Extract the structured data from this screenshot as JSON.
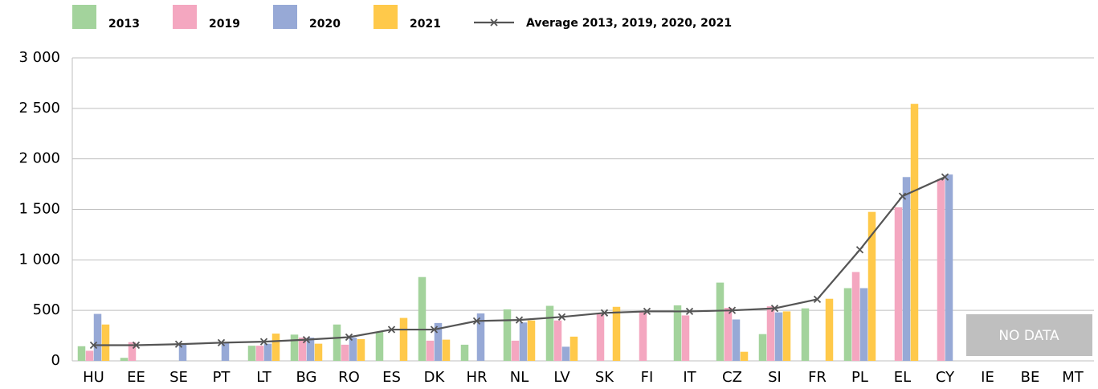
{
  "chart_data": {
    "type": "bar",
    "categories": [
      "HU",
      "EE",
      "SE",
      "PT",
      "LT",
      "BG",
      "RO",
      "ES",
      "DK",
      "HR",
      "NL",
      "LV",
      "SK",
      "FI",
      "IT",
      "CZ",
      "SI",
      "FR",
      "PL",
      "EL",
      "CY",
      "IE",
      "BE",
      "MT"
    ],
    "series": [
      {
        "name": "2013",
        "color": "#a3d39c",
        "values": [
          145,
          30,
          null,
          null,
          150,
          260,
          360,
          290,
          830,
          160,
          510,
          545,
          null,
          null,
          550,
          775,
          265,
          520,
          720,
          null,
          null,
          null,
          null,
          null
        ]
      },
      {
        "name": "2019",
        "color": "#f4a7c0",
        "values": [
          100,
          185,
          null,
          null,
          150,
          230,
          160,
          null,
          200,
          null,
          200,
          400,
          470,
          490,
          450,
          525,
          540,
          null,
          880,
          1520,
          1800,
          null,
          null,
          null
        ]
      },
      {
        "name": "2020",
        "color": "#97a9d6",
        "values": [
          465,
          null,
          170,
          180,
          170,
          230,
          230,
          null,
          375,
          470,
          380,
          140,
          null,
          null,
          null,
          410,
          480,
          null,
          720,
          1820,
          1845,
          null,
          null,
          null
        ]
      },
      {
        "name": "2021",
        "color": "#ffc94a",
        "values": [
          360,
          null,
          null,
          null,
          270,
          170,
          215,
          425,
          210,
          null,
          400,
          240,
          535,
          null,
          null,
          90,
          490,
          615,
          1475,
          2545,
          null,
          null,
          null,
          null
        ]
      },
      {
        "name": "Average 2013, 2019, 2020, 2021",
        "type": "line",
        "color": "#555555",
        "values": [
          155,
          155,
          165,
          180,
          190,
          210,
          235,
          310,
          310,
          395,
          405,
          435,
          475,
          490,
          490,
          500,
          520,
          610,
          1100,
          1630,
          1820,
          null,
          null,
          null
        ]
      }
    ],
    "ylim": [
      0,
      3000
    ],
    "yticks": [
      0,
      500,
      {
        "value": 1000,
        "label": "1 000"
      },
      {
        "value": 1500,
        "label": "1 500"
      },
      {
        "value": 2000,
        "label": "2 000"
      },
      {
        "value": 2500,
        "label": "2 500"
      },
      {
        "value": 3000,
        "label": "3 000"
      }
    ],
    "grid": true,
    "annotations": [
      {
        "text": "NO DATA"
      }
    ]
  }
}
